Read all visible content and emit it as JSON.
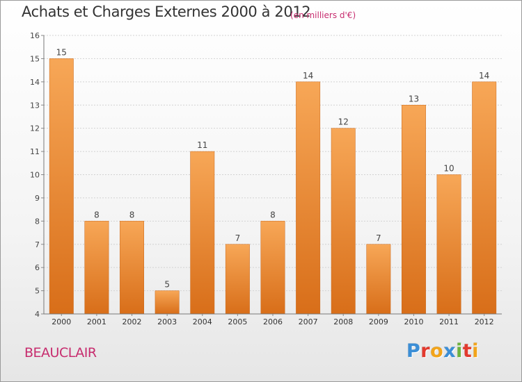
{
  "header": {
    "title": "Achats et Charges Externes 2000 à 2012",
    "subtitle": "(en milliers d'€)"
  },
  "footer": {
    "place": "BEAUCLAIR",
    "logo": "Proxiti",
    "logo_colors": [
      "#3b8ed6",
      "#e23a2e",
      "#f2a41a",
      "#3b8ed6",
      "#6db33f",
      "#e23a2e",
      "#f2a41a"
    ]
  },
  "chart_data": {
    "type": "bar",
    "categories": [
      "2000",
      "2001",
      "2002",
      "2003",
      "2004",
      "2005",
      "2006",
      "2007",
      "2008",
      "2009",
      "2010",
      "2011",
      "2012"
    ],
    "values": [
      15,
      8,
      8,
      5,
      11,
      7,
      8,
      14,
      12,
      7,
      13,
      10,
      14
    ],
    "ylim": [
      4,
      16
    ],
    "yticks": [
      4,
      5,
      6,
      7,
      8,
      9,
      10,
      11,
      12,
      13,
      14,
      15,
      16
    ],
    "grid": true,
    "bar_color_top": "#f7a757",
    "bar_color_bottom": "#d86e19"
  }
}
